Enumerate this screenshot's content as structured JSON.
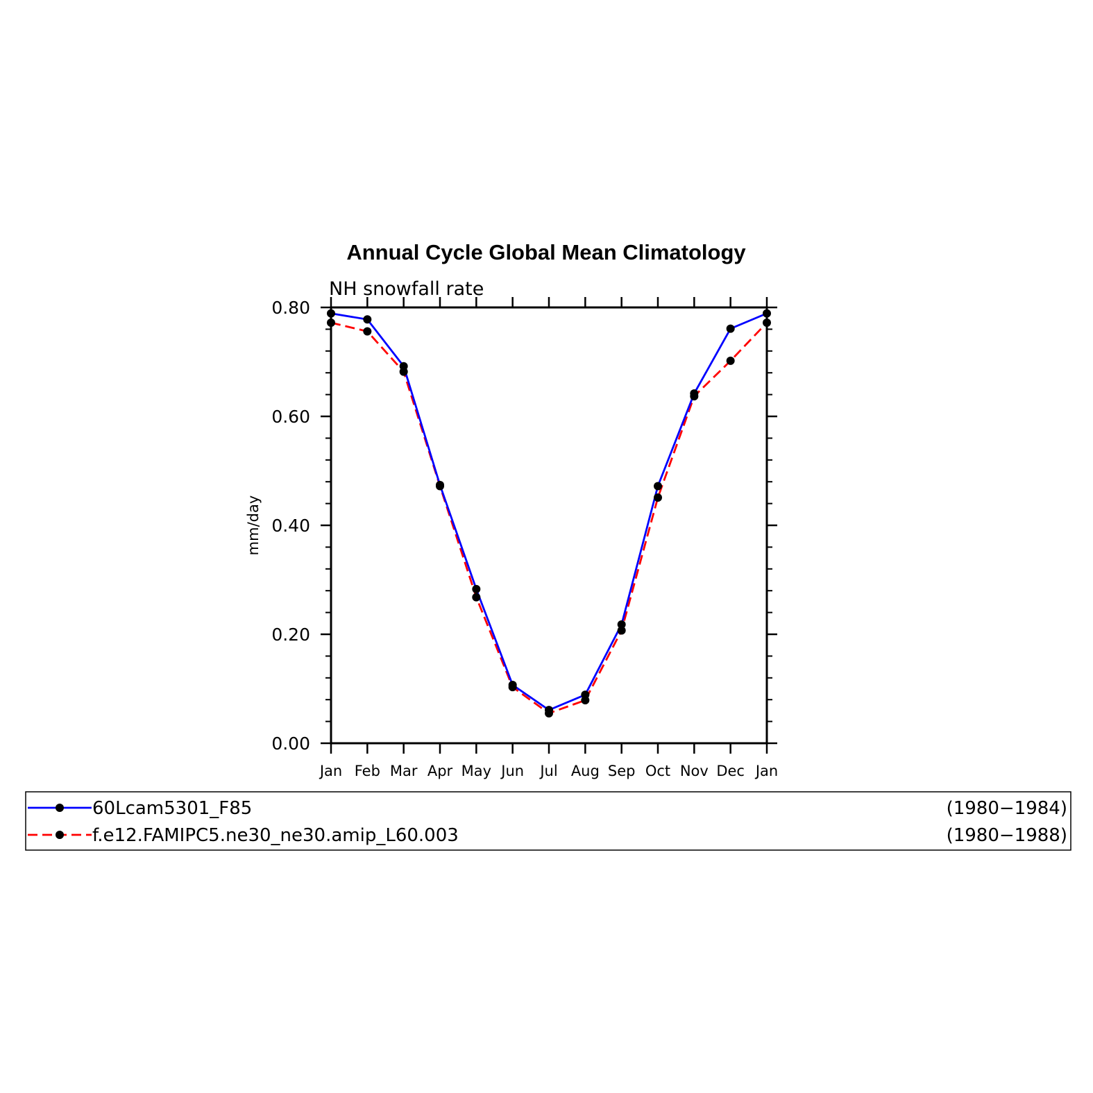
{
  "chart_data": {
    "type": "line",
    "title": "Annual Cycle Global Mean Climatology",
    "subtitle": "NH snowfall rate",
    "ylabel": "mm/day",
    "xlabel": "",
    "categories": [
      "Jan",
      "Feb",
      "Mar",
      "Apr",
      "May",
      "Jun",
      "Jul",
      "Aug",
      "Sep",
      "Oct",
      "Nov",
      "Dec",
      "Jan"
    ],
    "ylim": [
      0,
      0.8
    ],
    "yticks": [
      "0.00",
      "0.20",
      "0.40",
      "0.60",
      "0.80"
    ],
    "series": [
      {
        "name": "60Lcam5301_F85",
        "years": "(1980−1984)",
        "color": "#0000ff",
        "dash": "solid",
        "values": [
          0.789,
          0.778,
          0.692,
          0.474,
          0.283,
          0.107,
          0.061,
          0.089,
          0.218,
          0.472,
          0.642,
          0.761,
          0.789
        ]
      },
      {
        "name": "f.e12.FAMIPC5.ne30_ne30.amip_L60.003",
        "years": "(1980−1988)",
        "color": "#ff0000",
        "dash": "dashed",
        "values": [
          0.772,
          0.756,
          0.682,
          0.472,
          0.268,
          0.103,
          0.055,
          0.079,
          0.207,
          0.451,
          0.637,
          0.702,
          0.772
        ]
      }
    ],
    "legend_position": "bottom"
  }
}
